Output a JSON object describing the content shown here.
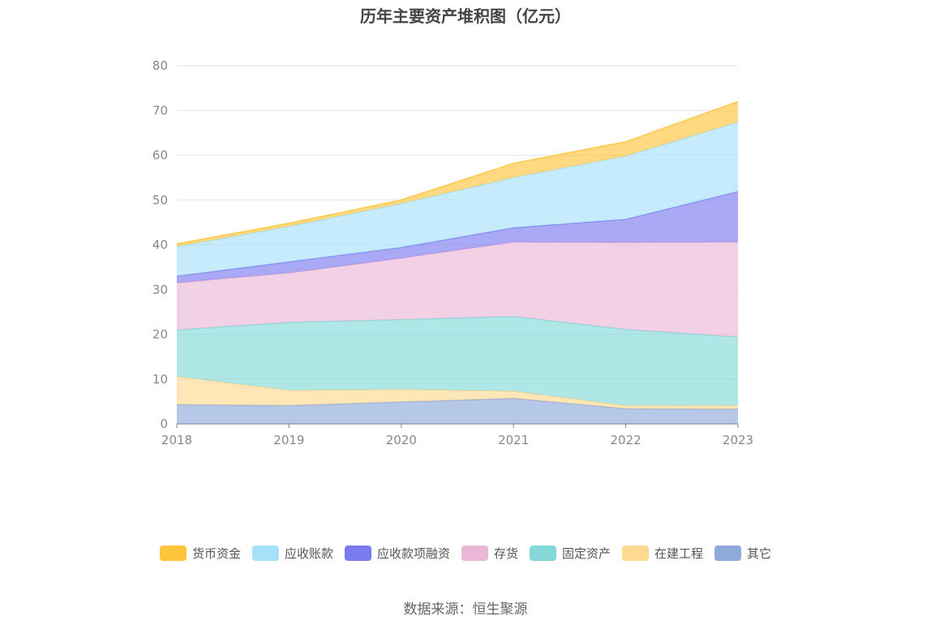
{
  "title": "历年主要资产堆积图（亿元）",
  "source": "数据来源：恒生聚源",
  "chart_data": {
    "type": "area",
    "stacked": true,
    "title": "历年主要资产堆积图（亿元）",
    "x": [
      "2018",
      "2019",
      "2020",
      "2021",
      "2022",
      "2023"
    ],
    "ylim": [
      0,
      80
    ],
    "yticks": [
      0,
      10,
      20,
      30,
      40,
      50,
      60,
      70,
      80
    ],
    "grid": true,
    "legend_position": "bottom",
    "series": [
      {
        "name": "其它",
        "color": "#8eaadb",
        "values": [
          4.3,
          4.1,
          4.9,
          5.7,
          3.4,
          3.3
        ]
      },
      {
        "name": "在建工程",
        "color": "#ffd98f",
        "values": [
          6.3,
          3.4,
          2.8,
          1.6,
          0.7,
          0.8
        ]
      },
      {
        "name": "固定资产",
        "color": "#84d8d8",
        "values": [
          10.4,
          15.2,
          15.6,
          16.7,
          17.0,
          15.3
        ]
      },
      {
        "name": "存货",
        "color": "#ebb7d8",
        "values": [
          10.5,
          11.0,
          13.7,
          16.6,
          19.4,
          21.2
        ]
      },
      {
        "name": "应收款项融资",
        "color": "#7b7bf0",
        "values": [
          1.5,
          2.5,
          2.4,
          3.2,
          5.2,
          11.3
        ]
      },
      {
        "name": "应收账款",
        "color": "#a6e1fa",
        "values": [
          6.6,
          7.9,
          9.8,
          11.2,
          14.1,
          15.5
        ]
      },
      {
        "name": "货币资金",
        "color": "#ffc53d",
        "values": [
          0.6,
          0.7,
          0.8,
          3.2,
          3.2,
          4.6
        ]
      }
    ],
    "legend_order": [
      "货币资金",
      "应收账款",
      "应收款项融资",
      "存货",
      "固定资产",
      "在建工程",
      "其它"
    ]
  }
}
